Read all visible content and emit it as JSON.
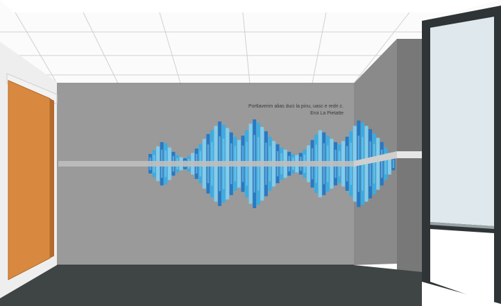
{
  "caption": {
    "line1": "Portlaverim alias duci la pinu, uasc e redri c.",
    "line2": "Eroi La Pietatte"
  },
  "waveform": {
    "levels": [
      0.18,
      0.25,
      0.32,
      0.4,
      0.38,
      0.3,
      0.22,
      0.16,
      0.12,
      0.1,
      0.14,
      0.2,
      0.28,
      0.36,
      0.46,
      0.55,
      0.62,
      0.7,
      0.78,
      0.72,
      0.66,
      0.58,
      0.5,
      0.44,
      0.52,
      0.62,
      0.74,
      0.82,
      0.76,
      0.68,
      0.6,
      0.5,
      0.42,
      0.36,
      0.3,
      0.26,
      0.22,
      0.18,
      0.16,
      0.2,
      0.26,
      0.34,
      0.44,
      0.54,
      0.62,
      0.58,
      0.52,
      0.46,
      0.4,
      0.36,
      0.42,
      0.5,
      0.6,
      0.7,
      0.8,
      0.76,
      0.7,
      0.64,
      0.56,
      0.48,
      0.4,
      0.3,
      0.2,
      0.12
    ],
    "colors": {
      "light": "#7fd0f2",
      "mid": "#35aee8",
      "dark": "#1f78c8"
    }
  },
  "colors": {
    "wall": "#9a9a9a",
    "floor": "#3f4445",
    "door": "#d9893f",
    "window_glass": "#dfe8ec",
    "window_frame": "#2f3436"
  }
}
